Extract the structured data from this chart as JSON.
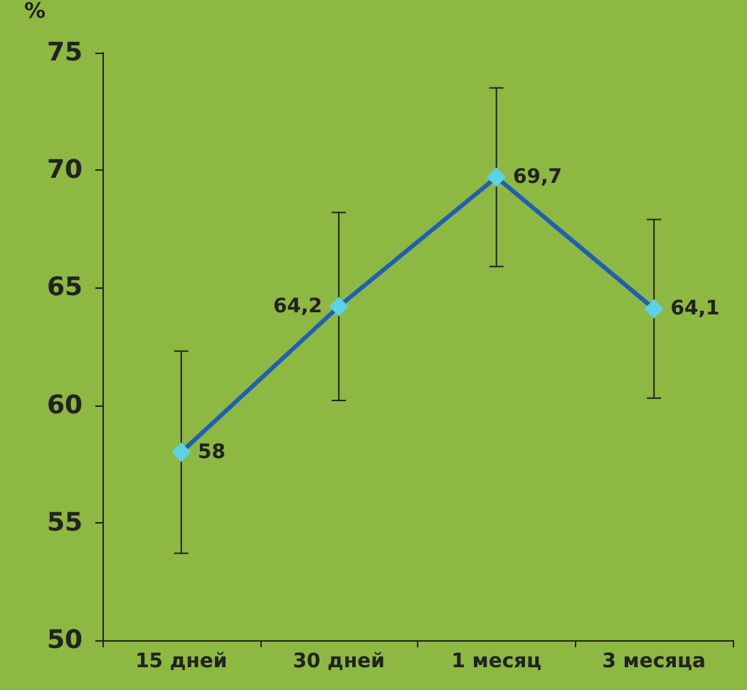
{
  "chart_data": {
    "type": "line",
    "ylabel": "%",
    "categories": [
      "15 дней",
      "30 дней",
      "1 месяц",
      "3 месяца"
    ],
    "series": [
      {
        "color": "#1f5fb5",
        "values": [
          58,
          64.2,
          69.7,
          64.1
        ],
        "errors": [
          4.3,
          4,
          3.8,
          3.8
        ],
        "value_labels": [
          "58",
          "64,2",
          "69,7",
          "64,1"
        ]
      }
    ],
    "ylim": [
      50,
      75
    ],
    "yticks": [
      50,
      55,
      60,
      65,
      70,
      75
    ],
    "grid": false,
    "marker": "diamond",
    "line_style": "solid"
  }
}
